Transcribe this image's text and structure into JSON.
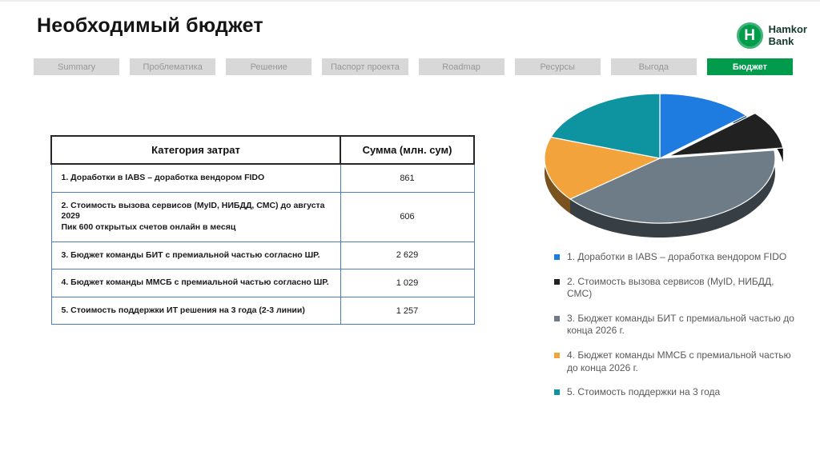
{
  "header": {
    "title": "Необходимый бюджет",
    "logo": {
      "glyph": "H",
      "brand_line1": "Hamkor",
      "brand_line2": "Bank",
      "color": "#009B4B"
    }
  },
  "tabs": {
    "active_color": "#009B4B",
    "items": [
      {
        "label": "Summary",
        "active": false
      },
      {
        "label": "Проблематика",
        "active": false
      },
      {
        "label": "Решение",
        "active": false
      },
      {
        "label": "Паспорт проекта",
        "active": false
      },
      {
        "label": "Roadmap",
        "active": false
      },
      {
        "label": "Ресурсы",
        "active": false
      },
      {
        "label": "Выгода",
        "active": false
      },
      {
        "label": "Бюджет",
        "active": true
      }
    ]
  },
  "table": {
    "headers": [
      "Категория затрат",
      "Сумма (млн. сум)"
    ],
    "rows": [
      {
        "category": "1. Доработки в IABS – доработка вендором FIDO",
        "amount": "861"
      },
      {
        "category": "2. Стоимость вызова сервисов (MyID, НИБДД, СМС) до августа 2029\nПик 600 открытых счетов онлайн в месяц",
        "amount": "606"
      },
      {
        "category": "3. Бюджет команды БИТ с премиальной частью согласно ШР.",
        "amount": "2 629"
      },
      {
        "category": "4. Бюджет команды ММСБ с премиальной частью согласно ШР.",
        "amount": "1 029"
      },
      {
        "category": "5. Стоимость поддержки ИТ решения  на 3 года (2-3 линии)",
        "amount": "1 257"
      }
    ]
  },
  "chart_data": {
    "type": "pie",
    "style": "3d",
    "unit": "млн. сум",
    "direction": "clockwise",
    "start_angle_deg": 0,
    "exploded_index": 1,
    "values": [
      861,
      606,
      2629,
      1029,
      1257
    ],
    "colors": [
      "#1E7BDF",
      "#212121",
      "#6E7C87",
      "#F2A33C",
      "#0E93A1"
    ],
    "labels": [
      "1. Доработки в IABS – доработка вендором FIDO",
      "2. Стоимость вызова сервисов (MyID, НИБДД, СМС)",
      "3. Бюджет команды БИТ с премиальной частью до конца 2026 г.",
      "4. Бюджет команды ММСБ с премиальной частью до конца 2026 г.",
      "5. Стоимость поддержки на 3 года"
    ],
    "legend_position": "right-below-chart"
  }
}
